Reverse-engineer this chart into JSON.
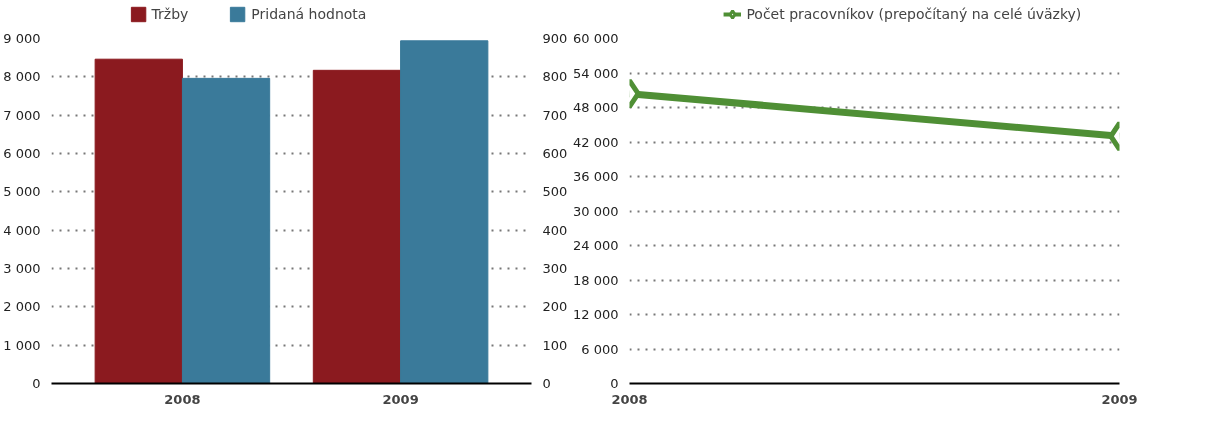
{
  "chart_data": [
    {
      "type": "bar",
      "categories": [
        "2008",
        "2009"
      ],
      "legend": "top",
      "grid": "y",
      "series": [
        {
          "name": "Tržby",
          "color": "#8b1a1f",
          "values": [
            8460,
            8170
          ]
        },
        {
          "name": "Pridaná hodnota",
          "color": "#3a7a9a",
          "values": [
            796,
            894
          ],
          "axis": "y2"
        }
      ],
      "ylim": [
        0,
        9000
      ],
      "yticks": [
        0,
        {
          "value": 1000,
          "label": "1 000"
        },
        {
          "value": 2000,
          "label": "2 000"
        },
        {
          "value": 3000,
          "label": "3 000"
        },
        {
          "value": 4000,
          "label": "4 000"
        },
        {
          "value": 5000,
          "label": "5 000"
        },
        {
          "value": 6000,
          "label": "6 000"
        },
        {
          "value": 7000,
          "label": "7 000"
        },
        {
          "value": 8000,
          "label": "8 000"
        },
        {
          "value": 9000,
          "label": "9 000"
        }
      ],
      "y2lim": [
        0,
        900
      ],
      "y2ticks": [
        0,
        100,
        200,
        300,
        400,
        500,
        600,
        700,
        800,
        900
      ]
    },
    {
      "type": "line",
      "x": [
        2008,
        2009
      ],
      "xlim": [
        2008,
        2009
      ],
      "xticks": [
        2008,
        2009
      ],
      "legend": "top right",
      "grid": "y",
      "marker": "diamond",
      "series": [
        {
          "name": "Počet pracovníkov (prepočítaný na celé úväzky)",
          "color": "#4f8f35",
          "values": [
            50400,
            43000
          ]
        }
      ],
      "ylim": [
        0,
        60000
      ],
      "yticks": [
        0,
        {
          "value": 6000,
          "label": "6 000"
        },
        {
          "value": 12000,
          "label": "12 000"
        },
        {
          "value": 18000,
          "label": "18 000"
        },
        {
          "value": 24000,
          "label": "24 000"
        },
        {
          "value": 30000,
          "label": "30 000"
        },
        {
          "value": 36000,
          "label": "36 000"
        },
        {
          "value": 42000,
          "label": "42 000"
        },
        {
          "value": 48000,
          "label": "48 000"
        },
        {
          "value": 54000,
          "label": "54 000"
        },
        {
          "value": 60000,
          "label": "60 000"
        }
      ]
    }
  ]
}
